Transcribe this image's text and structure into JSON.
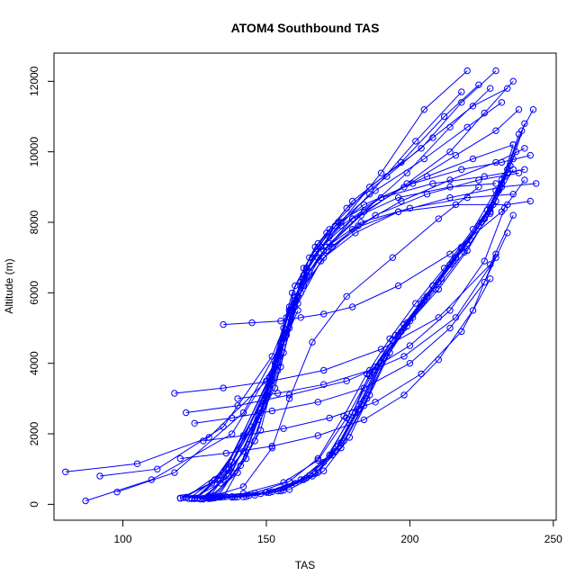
{
  "chart_data": {
    "type": "line",
    "title": "ATOM4 Southbound TAS",
    "xlabel": "TAS",
    "ylabel": "Altitude (m)",
    "xlim": [
      76,
      251
    ],
    "ylim": [
      -450,
      12800
    ],
    "xticks": [
      100,
      150,
      200,
      250
    ],
    "yticks": [
      0,
      2000,
      4000,
      6000,
      8000,
      10000,
      12000
    ],
    "grid": false,
    "legend": "none",
    "marker": "open-circle",
    "color": "#0000ff",
    "series": [
      {
        "x": [
          128,
          135,
          150,
          158,
          166,
          176,
          190,
          205,
          220
        ],
        "y": [
          150,
          700,
          3000,
          5500,
          7000,
          8000,
          9400,
          11200,
          12300
        ]
      },
      {
        "x": [
          130,
          140,
          152,
          160,
          168,
          180,
          197,
          212,
          224
        ],
        "y": [
          180,
          900,
          3500,
          6200,
          7400,
          8600,
          9700,
          11000,
          11900
        ]
      },
      {
        "x": [
          126,
          138,
          154,
          163,
          172,
          186,
          204,
          218,
          230
        ],
        "y": [
          170,
          1200,
          4000,
          6500,
          7800,
          9000,
          10100,
          11400,
          12300
        ]
      },
      {
        "x": [
          124,
          134,
          148,
          156,
          164,
          172,
          186,
          202,
          218
        ],
        "y": [
          160,
          600,
          2600,
          5000,
          6700,
          7600,
          8800,
          10300,
          11700
        ]
      },
      {
        "x": [
          132,
          143,
          155,
          160,
          165,
          172,
          184,
          199,
          214,
          228
        ],
        "y": [
          200,
          1300,
          3900,
          5600,
          6600,
          7400,
          8300,
          9400,
          10700,
          11800
        ]
      },
      {
        "x": [
          127,
          137,
          153,
          161,
          170,
          183,
          199,
          214,
          226,
          236
        ],
        "y": [
          150,
          800,
          3300,
          5900,
          7200,
          8200,
          9100,
          10000,
          11100,
          12000
        ]
      },
      {
        "x": [
          122,
          136,
          151,
          159,
          167,
          178,
          192,
          208,
          222,
          234
        ],
        "y": [
          200,
          1000,
          3600,
          6000,
          7300,
          8400,
          9300,
          10400,
          11300,
          11800
        ]
      },
      {
        "x": [
          129,
          142,
          156,
          164,
          174,
          188,
          205,
          220,
          232
        ],
        "y": [
          180,
          1500,
          4300,
          6600,
          7900,
          8900,
          9800,
          10700,
          11400
        ]
      },
      {
        "x": [
          120,
          133,
          150,
          158,
          168,
          180,
          198,
          216,
          230,
          238
        ],
        "y": [
          170,
          700,
          3100,
          5600,
          7000,
          8100,
          9000,
          9900,
          10600,
          11200
        ]
      },
      {
        "x": [
          131,
          141,
          154,
          160,
          167,
          176,
          190,
          206,
          222,
          236
        ],
        "y": [
          190,
          1100,
          3800,
          5900,
          7100,
          7900,
          8700,
          9300,
          9800,
          10200
        ]
      },
      {
        "x": [
          125,
          135,
          152,
          158,
          164,
          171,
          182,
          197,
          214,
          230,
          240
        ],
        "y": [
          160,
          900,
          3700,
          5500,
          6500,
          7200,
          7900,
          8600,
          9200,
          9700,
          10100
        ]
      },
      {
        "x": [
          133,
          146,
          157,
          163,
          171,
          184,
          201,
          218,
          232,
          242
        ],
        "y": [
          200,
          1800,
          4800,
          6700,
          7700,
          8500,
          9100,
          9500,
          9700,
          9900
        ]
      },
      {
        "x": [
          128,
          138,
          149,
          156,
          163,
          173,
          188,
          206,
          224,
          238
        ],
        "y": [
          170,
          900,
          2800,
          4800,
          6200,
          7300,
          8200,
          8800,
          9200,
          9400
        ]
      },
      {
        "x": [
          121,
          131,
          147,
          155,
          162,
          170,
          181,
          196,
          214,
          232,
          244
        ],
        "y": [
          190,
          600,
          2400,
          4600,
          6000,
          7000,
          7700,
          8300,
          8700,
          9000,
          9100
        ]
      },
      {
        "x": [
          135,
          148,
          158,
          165,
          175,
          190,
          208,
          226,
          240
        ],
        "y": [
          210,
          2100,
          5300,
          7000,
          8000,
          8700,
          9100,
          9300,
          9500
        ]
      },
      {
        "x": [
          126,
          137,
          151,
          157,
          163,
          171,
          183,
          200,
          220,
          236
        ],
        "y": [
          180,
          1000,
          3400,
          5300,
          6400,
          7300,
          8000,
          8400,
          8700,
          8800
        ]
      },
      {
        "x": [
          130,
          144,
          156,
          162,
          169,
          180,
          196,
          214,
          230
        ],
        "y": [
          200,
          1700,
          4600,
          6300,
          7300,
          8100,
          8700,
          9000,
          9100
        ]
      },
      {
        "x": [
          123,
          132,
          145,
          154,
          161,
          169,
          180,
          196,
          216,
          234,
          242
        ],
        "y": [
          160,
          700,
          2200,
          4200,
          5700,
          6900,
          7800,
          8300,
          8500,
          8500,
          8600
        ]
      },
      {
        "x": [
          80,
          105,
          130,
          150,
          158
        ],
        "y": [
          920,
          1150,
          1900,
          3500,
          5000
        ]
      },
      {
        "x": [
          92,
          112,
          135,
          152,
          160
        ],
        "y": [
          800,
          1000,
          2200,
          4200,
          5800
        ]
      },
      {
        "x": [
          87,
          110,
          138,
          153,
          161
        ],
        "y": [
          100,
          700,
          2000,
          4000,
          5500
        ]
      },
      {
        "x": [
          98,
          118,
          142,
          156,
          162
        ],
        "y": [
          350,
          900,
          2600,
          4700,
          6200
        ]
      },
      {
        "x": [
          125,
          132,
          142,
          152,
          158,
          166,
          178,
          194,
          210,
          224
        ],
        "y": [
          180,
          250,
          500,
          1600,
          3000,
          4600,
          5900,
          7000,
          8100,
          9000
        ]
      },
      {
        "x": [
          128,
          138,
          150,
          162,
          172,
          180,
          188,
          198,
          210,
          220,
          228,
          234
        ],
        "y": [
          150,
          200,
          350,
          700,
          1400,
          2600,
          3900,
          5000,
          6100,
          7200,
          8300,
          9400
        ]
      },
      {
        "x": [
          124,
          136,
          148,
          160,
          170,
          179,
          186,
          195,
          206,
          216,
          226,
          232
        ],
        "y": [
          170,
          220,
          300,
          600,
          1200,
          2400,
          3700,
          4800,
          5900,
          7000,
          8100,
          9200
        ]
      },
      {
        "x": [
          130,
          142,
          154,
          166,
          176,
          184,
          190,
          198,
          208,
          218,
          228,
          235
        ],
        "y": [
          160,
          210,
          380,
          800,
          1600,
          2800,
          4000,
          5100,
          6200,
          7300,
          8400,
          9600
        ]
      },
      {
        "x": [
          122,
          134,
          146,
          158,
          168,
          177,
          185,
          193,
          202,
          212,
          222,
          230,
          237
        ],
        "y": [
          190,
          230,
          320,
          650,
          1300,
          2500,
          3700,
          4700,
          5700,
          6700,
          7800,
          8900,
          10000
        ]
      },
      {
        "x": [
          132,
          144,
          156,
          168,
          177,
          185,
          192,
          200,
          210,
          220,
          229,
          236
        ],
        "y": [
          180,
          250,
          400,
          900,
          1800,
          3000,
          4200,
          5200,
          6300,
          7400,
          8500,
          9500
        ]
      },
      {
        "x": [
          126,
          138,
          150,
          164,
          174,
          182,
          189,
          197,
          206,
          216,
          226,
          233,
          238
        ],
        "y": [
          170,
          220,
          340,
          750,
          1500,
          2700,
          3900,
          4900,
          5900,
          7000,
          8100,
          9300,
          10500
        ]
      },
      {
        "x": [
          128,
          140,
          152,
          165,
          175,
          183,
          190,
          199,
          209,
          219,
          228,
          234
        ],
        "y": [
          160,
          210,
          360,
          820,
          1650,
          2850,
          4050,
          5050,
          6100,
          7150,
          8250,
          9400
        ]
      },
      {
        "x": [
          134,
          146,
          158,
          170,
          179,
          186,
          193,
          201,
          211,
          221,
          230,
          236,
          240
        ],
        "y": [
          200,
          260,
          420,
          950,
          1900,
          3100,
          4300,
          5300,
          6400,
          7500,
          8600,
          9800,
          10800
        ]
      },
      {
        "x": [
          120,
          130,
          142,
          156,
          168,
          178,
          186,
          194,
          204,
          214,
          224,
          231
        ],
        "y": [
          180,
          230,
          310,
          620,
          1250,
          2450,
          3650,
          4650,
          5700,
          6800,
          7900,
          8900
        ]
      },
      {
        "x": [
          131,
          143,
          155,
          167,
          176,
          184,
          191,
          199,
          208,
          218,
          227,
          234,
          239,
          243
        ],
        "y": [
          170,
          220,
          380,
          870,
          1750,
          2950,
          4150,
          5150,
          6200,
          7250,
          8350,
          9500,
          10600,
          11200
        ]
      },
      {
        "x": [
          127,
          139,
          151,
          163,
          173,
          181,
          188,
          196,
          205,
          215,
          225,
          232,
          236
        ],
        "y": [
          150,
          200,
          330,
          700,
          1400,
          2600,
          3800,
          4800,
          5800,
          6900,
          8000,
          9100,
          10200
        ]
      },
      {
        "x": [
          135,
          145,
          155,
          162,
          170,
          180,
          196,
          214,
          232,
          240
        ],
        "y": [
          5100,
          5150,
          5200,
          5300,
          5400,
          5600,
          6200,
          7100,
          8300,
          9200
        ]
      },
      {
        "x": [
          118,
          135,
          152,
          170,
          190,
          210,
          228,
          236
        ],
        "y": [
          3150,
          3300,
          3500,
          3800,
          4400,
          5300,
          6800,
          8200
        ]
      },
      {
        "x": [
          122,
          140,
          158,
          178,
          198,
          216,
          230
        ],
        "y": [
          2600,
          2800,
          3100,
          3500,
          4200,
          5300,
          7000
        ]
      },
      {
        "x": [
          125,
          138,
          152,
          168,
          184,
          200,
          214,
          226,
          234
        ],
        "y": [
          2300,
          2450,
          2650,
          2900,
          3300,
          4000,
          5000,
          6300,
          7700
        ]
      },
      {
        "x": [
          128,
          142,
          156,
          172,
          188,
          204,
          218,
          228
        ],
        "y": [
          1800,
          1950,
          2150,
          2450,
          2900,
          3700,
          4900,
          6400
        ]
      },
      {
        "x": [
          140,
          154,
          170,
          186,
          200,
          214,
          226,
          233
        ],
        "y": [
          3000,
          3150,
          3400,
          3800,
          4500,
          5500,
          6900,
          8400
        ]
      },
      {
        "x": [
          120,
          136,
          152,
          168,
          184,
          198,
          210,
          222,
          230
        ],
        "y": [
          1300,
          1450,
          1650,
          1950,
          2400,
          3100,
          4100,
          5500,
          7100
        ]
      }
    ]
  }
}
